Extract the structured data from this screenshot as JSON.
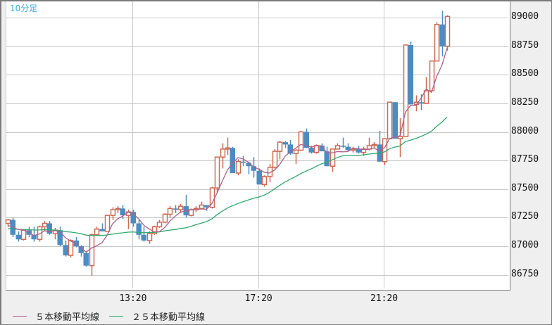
{
  "header": {
    "period_label": "10分足"
  },
  "legend": [
    {
      "label": "５本移動平均線",
      "color": "#b0608c"
    },
    {
      "label": "２５本移動平均線",
      "color": "#2eaa6e"
    }
  ],
  "colors": {
    "up": "#d06a50",
    "down": "#4a8cc4",
    "ma5": "#b0608c",
    "ma25": "#2eaa6e",
    "grid": "#c8c8c8",
    "period": "#3cb0e0"
  },
  "chart_data": {
    "type": "candlestick",
    "title": "10分足",
    "xlabel": "",
    "ylabel": "",
    "ylim": [
      86650,
      89100
    ],
    "y_ticks": [
      89000,
      88750,
      88500,
      88250,
      88000,
      87750,
      87500,
      87250,
      87000,
      86750
    ],
    "x_ticks": [
      {
        "label": "13:20",
        "index": 24
      },
      {
        "label": "17:20",
        "index": 48
      },
      {
        "label": "21:20",
        "index": 72
      }
    ],
    "candles": [
      [
        87200,
        87240,
        87170,
        87230
      ],
      [
        87230,
        87250,
        87080,
        87100
      ],
      [
        87100,
        87130,
        87040,
        87060
      ],
      [
        87060,
        87150,
        87050,
        87140
      ],
      [
        87140,
        87170,
        87080,
        87100
      ],
      [
        87100,
        87170,
        87040,
        87060
      ],
      [
        87060,
        87180,
        87040,
        87170
      ],
      [
        87170,
        87220,
        87130,
        87200
      ],
      [
        87200,
        87220,
        87100,
        87110
      ],
      [
        87110,
        87160,
        87060,
        87140
      ],
      [
        87140,
        87170,
        87000,
        87010
      ],
      [
        87010,
        87050,
        86910,
        86920
      ],
      [
        86920,
        87060,
        86900,
        87050
      ],
      [
        87050,
        87080,
        86990,
        87000
      ],
      [
        87000,
        87010,
        86910,
        86940
      ],
      [
        86940,
        86960,
        86820,
        86830
      ],
      [
        86830,
        87110,
        86740,
        87100
      ],
      [
        87100,
        87170,
        87090,
        87150
      ],
      [
        87150,
        87200,
        87140,
        87130
      ],
      [
        87130,
        87250,
        87130,
        87270
      ],
      [
        87270,
        87340,
        87230,
        87320
      ],
      [
        87320,
        87350,
        87290,
        87330
      ],
      [
        87330,
        87360,
        87240,
        87270
      ],
      [
        87270,
        87320,
        87150,
        87300
      ],
      [
        87300,
        87320,
        87170,
        87200
      ],
      [
        87200,
        87230,
        87060,
        87100
      ],
      [
        87100,
        87170,
        87040,
        87050
      ],
      [
        87050,
        87130,
        87020,
        87110
      ],
      [
        87110,
        87180,
        87100,
        87170
      ],
      [
        87170,
        87230,
        87160,
        87210
      ],
      [
        87210,
        87290,
        87200,
        87280
      ],
      [
        87280,
        87350,
        87250,
        87330
      ],
      [
        87330,
        87360,
        87290,
        87320
      ],
      [
        87320,
        87370,
        87290,
        87350
      ],
      [
        87350,
        87450,
        87250,
        87270
      ],
      [
        87270,
        87330,
        87260,
        87320
      ],
      [
        87320,
        87350,
        87300,
        87330
      ],
      [
        87330,
        87390,
        87320,
        87360
      ],
      [
        87360,
        87360,
        87310,
        87340
      ],
      [
        87340,
        87520,
        87330,
        87510
      ],
      [
        87510,
        87780,
        87470,
        87780
      ],
      [
        87780,
        87900,
        87680,
        87850
      ],
      [
        87850,
        87950,
        87800,
        87860
      ],
      [
        87860,
        87870,
        87640,
        87640
      ],
      [
        87640,
        87760,
        87620,
        87740
      ],
      [
        87740,
        87790,
        87700,
        87730
      ],
      [
        87730,
        87740,
        87630,
        87700
      ],
      [
        87700,
        87780,
        87600,
        87660
      ],
      [
        87660,
        87680,
        87540,
        87540
      ],
      [
        87540,
        87620,
        87520,
        87610
      ],
      [
        87610,
        87720,
        87560,
        87690
      ],
      [
        87690,
        87850,
        87680,
        87830
      ],
      [
        87830,
        87920,
        87760,
        87910
      ],
      [
        87910,
        87920,
        87860,
        87890
      ],
      [
        87890,
        87930,
        87800,
        87810
      ],
      [
        87810,
        87850,
        87720,
        87840
      ],
      [
        87840,
        88010,
        87840,
        88000
      ],
      [
        88000,
        88030,
        87860,
        87860
      ],
      [
        87860,
        87880,
        87810,
        87820
      ],
      [
        87820,
        87890,
        87810,
        87880
      ],
      [
        87880,
        87900,
        87840,
        87830
      ],
      [
        87830,
        87870,
        87700,
        87700
      ],
      [
        87700,
        87800,
        87650,
        87850
      ],
      [
        87850,
        87900,
        87860,
        87880
      ],
      [
        87880,
        87950,
        87860,
        87870
      ],
      [
        87870,
        87900,
        87830,
        87840
      ],
      [
        87840,
        87870,
        87820,
        87850
      ],
      [
        87850,
        87880,
        87810,
        87820
      ],
      [
        87820,
        87870,
        87790,
        87850
      ],
      [
        87850,
        87950,
        87840,
        87880
      ],
      [
        87880,
        87910,
        87860,
        87890
      ],
      [
        87890,
        88010,
        87740,
        87740
      ],
      [
        87740,
        87940,
        87710,
        87940
      ],
      [
        87940,
        88250,
        87940,
        88260
      ],
      [
        88260,
        88260,
        87960,
        87940
      ],
      [
        87940,
        88120,
        87780,
        87960
      ],
      [
        87960,
        88760,
        87960,
        88760
      ],
      [
        88760,
        88790,
        88240,
        88240
      ],
      [
        88240,
        88320,
        88180,
        88260
      ],
      [
        88260,
        88330,
        88190,
        88250
      ],
      [
        88250,
        88480,
        88250,
        88360
      ],
      [
        88360,
        88620,
        88360,
        88620
      ],
      [
        88620,
        88960,
        88620,
        88940
      ],
      [
        88940,
        89060,
        88660,
        88750
      ],
      [
        88750,
        89020,
        88710,
        89010
      ]
    ]
  }
}
